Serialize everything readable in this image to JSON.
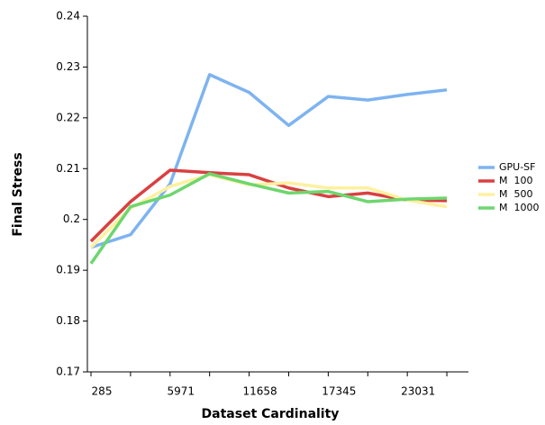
{
  "chart_data": {
    "type": "line",
    "x_label": "Dataset Cardinality",
    "y_label": "Final Stress",
    "categories": [
      "285",
      null,
      "5971",
      null,
      "11658",
      null,
      "17345",
      null,
      "23031",
      null
    ],
    "series": [
      {
        "name": "GPU-SF",
        "color": "#7eb3f0",
        "values": [
          0.1945,
          0.197,
          0.207,
          0.2285,
          0.225,
          0.2185,
          0.2242,
          0.2235,
          0.2246,
          0.2255
        ]
      },
      {
        "name": "M  100",
        "color": "#d94040",
        "values": [
          0.1957,
          0.2035,
          0.2097,
          0.2092,
          0.2088,
          0.2062,
          0.2045,
          0.2052,
          0.2038,
          0.2037
        ]
      },
      {
        "name": "M  500",
        "color": "#fff0a0",
        "values": [
          0.1945,
          0.2022,
          0.2065,
          0.2088,
          0.2068,
          0.2072,
          0.2062,
          0.2062,
          0.2038,
          0.2025
        ]
      },
      {
        "name": "M  1000",
        "color": "#6ed66e",
        "values": [
          0.1913,
          0.2025,
          0.2048,
          0.209,
          0.207,
          0.2052,
          0.2055,
          0.2035,
          0.204,
          0.2042
        ]
      }
    ],
    "ylim": [
      0.17,
      0.24
    ],
    "yticks": [
      0.17,
      0.18,
      0.19,
      0.2,
      0.21,
      0.22,
      0.23,
      0.24
    ]
  }
}
